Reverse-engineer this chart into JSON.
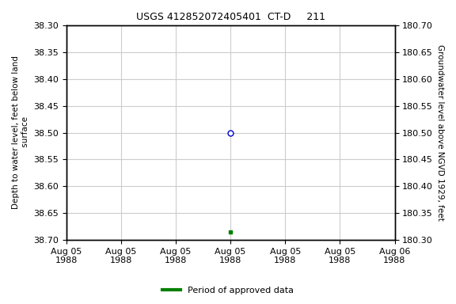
{
  "title": "USGS 412852072405401  CT-D     211",
  "ylabel_left": "Depth to water level, feet below land\n surface",
  "ylabel_right": "Groundwater level above NGVD 1929, feet",
  "ylim_left": [
    38.3,
    38.7
  ],
  "ylim_right": [
    180.3,
    180.7
  ],
  "yticks_left": [
    38.3,
    38.35,
    38.4,
    38.45,
    38.5,
    38.55,
    38.6,
    38.65,
    38.7
  ],
  "yticks_right": [
    180.7,
    180.65,
    180.6,
    180.55,
    180.5,
    180.45,
    180.4,
    180.35,
    180.3
  ],
  "data_point_x": 3.0,
  "data_point_y": 38.5,
  "data_point_color": "#0000cc",
  "data_point_marker": "o",
  "data_point_markersize": 5,
  "green_dot_x": 3.0,
  "green_dot_y": 38.685,
  "green_dot_color": "#008000",
  "green_dot_marker": "s",
  "green_dot_markersize": 3,
  "grid_color": "#cccccc",
  "background_color": "#ffffff",
  "font_color": "#000000",
  "legend_label": "Period of approved data",
  "legend_color": "#008000",
  "xlim": [
    0,
    6
  ],
  "xtick_positions": [
    0,
    1,
    2,
    3,
    4,
    5,
    6
  ],
  "xtick_labels": [
    "Aug 05\n1988",
    "Aug 05\n1988",
    "Aug 05\n1988",
    "Aug 05\n1988",
    "Aug 05\n1988",
    "Aug 05\n1988",
    "Aug 06\n1988"
  ],
  "font_family": "Courier New",
  "font_size_ticks": 8,
  "font_size_title": 9,
  "font_size_label": 7.5,
  "font_size_legend": 8
}
